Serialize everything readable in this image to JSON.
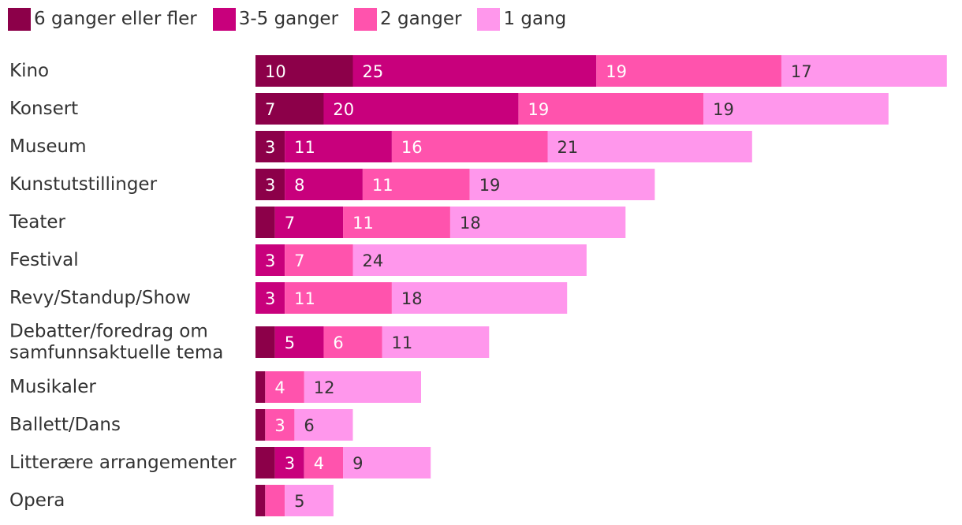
{
  "chart_data": {
    "type": "bar",
    "orientation": "horizontal",
    "stacked": true,
    "legend_position": "top-left",
    "grid": false,
    "categories": [
      [
        "Kino"
      ],
      [
        "Konsert"
      ],
      [
        "Museum"
      ],
      [
        "Kunstutstillinger"
      ],
      [
        "Teater"
      ],
      [
        "Festival"
      ],
      [
        "Revy/Standup/Show"
      ],
      [
        "Debatter/foredrag om",
        "samfunnsaktuelle tema"
      ],
      [
        "Musikaler"
      ],
      [
        "Ballett/Dans"
      ],
      [
        "Litterære arrangementer"
      ],
      [
        "Opera"
      ]
    ],
    "series": [
      {
        "name": "6 ganger eller fler",
        "color": "#8c0049",
        "label_color": "#ffffff",
        "values": [
          10,
          7,
          3,
          3,
          2,
          0,
          0,
          2,
          1,
          1,
          2,
          1
        ],
        "labels": [
          "10",
          "7",
          "3",
          "3",
          "",
          "",
          "",
          "",
          "",
          "",
          "",
          ""
        ]
      },
      {
        "name": "3-5 ganger",
        "color": "#c8007c",
        "label_color": "#ffffff",
        "values": [
          25,
          20,
          11,
          8,
          7,
          3,
          3,
          5,
          0,
          0,
          3,
          0
        ],
        "labels": [
          "25",
          "20",
          "11",
          "8",
          "7",
          "3",
          "3",
          "5",
          "",
          "",
          "3",
          ""
        ]
      },
      {
        "name": "2 ganger",
        "color": "#ff53ad",
        "label_color": "#ffffff",
        "values": [
          19,
          19,
          16,
          11,
          11,
          7,
          11,
          6,
          4,
          3,
          4,
          2
        ],
        "labels": [
          "19",
          "19",
          "16",
          "11",
          "11",
          "7",
          "11",
          "6",
          "4",
          "3",
          "4",
          ""
        ]
      },
      {
        "name": "1 gang",
        "color": "#ff97ec",
        "label_color": "#333333",
        "values": [
          17,
          19,
          21,
          19,
          18,
          24,
          18,
          11,
          12,
          6,
          9,
          5
        ],
        "labels": [
          "17",
          "19",
          "21",
          "19",
          "18",
          "24",
          "18",
          "11",
          "12",
          "6",
          "9",
          "5"
        ]
      }
    ]
  }
}
